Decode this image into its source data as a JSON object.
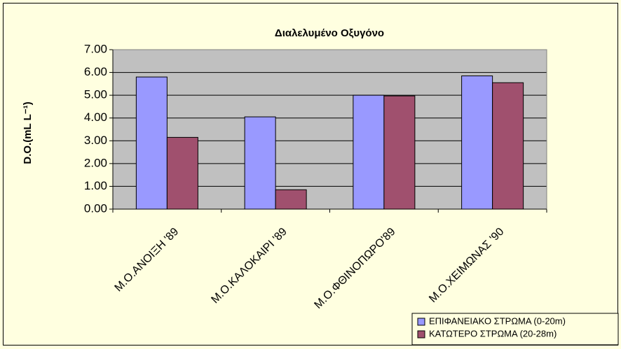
{
  "chart_data": {
    "type": "bar",
    "title": "Διαλελυμένο Οξυγόνο",
    "ylabel": "D.O.(mL L⁻¹)",
    "categories": [
      "Μ.Ο.ΑΝΟΙΞΗ   '89",
      "Μ.Ο.ΚΑΛΟΚΑΙΡΙ '89",
      "Μ.Ο.ΦΘΙΝΟΠΩΡΟ'89",
      "Μ.Ο.ΧΕΙΜΩΝΑΣ '90"
    ],
    "series": [
      {
        "name": "ΕΠΙΦΑΝΕΙΑΚΟ ΣΤΡΩΜΑ (0-20m)",
        "color": "#9999ff",
        "values": [
          5.8,
          4.05,
          5.0,
          5.85
        ]
      },
      {
        "name": "ΚΑΤΩΤΕΡΟ ΣΤΡΩΜΑ (20-28m)",
        "color": "#a0506e",
        "values": [
          3.15,
          0.85,
          4.97,
          5.55
        ]
      }
    ],
    "ylim": [
      0,
      7
    ],
    "yticks": [
      {
        "value": 0,
        "label": "0.00"
      },
      {
        "value": 1,
        "label": "1.00"
      },
      {
        "value": 2,
        "label": "2.00"
      },
      {
        "value": 3,
        "label": "3.00"
      },
      {
        "value": 4,
        "label": "4.00"
      },
      {
        "value": 5,
        "label": "5.00"
      },
      {
        "value": 6,
        "label": "6.00"
      },
      {
        "value": 7,
        "label": "7.00"
      }
    ],
    "grid": true,
    "legend": "bottom-right"
  }
}
